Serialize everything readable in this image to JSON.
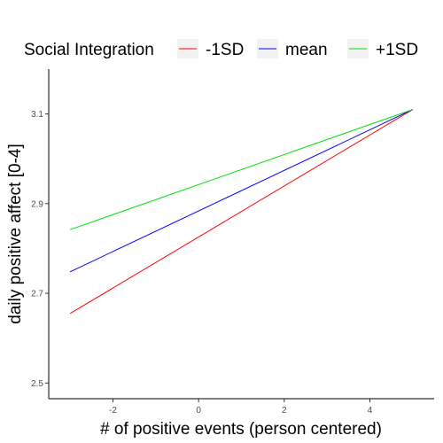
{
  "chart_data": {
    "type": "line",
    "xlabel": "# of positive events (person centered)",
    "ylabel": "daily positive affect [0-4]",
    "xlim": [
      -3.5,
      5.5
    ],
    "ylim": [
      2.465,
      3.2
    ],
    "x_ticks": [
      -2,
      0,
      2,
      4
    ],
    "y_ticks": [
      2.5,
      2.7,
      2.9,
      3.1
    ],
    "x_tick_labels": [
      "-2",
      "0",
      "2",
      "4"
    ],
    "y_tick_labels": [
      "2.5",
      "2.7",
      "2.9",
      "3.1"
    ],
    "grid": false,
    "legend": {
      "title": "Social Integration",
      "placement": "top",
      "entries": [
        "-1SD",
        "mean",
        "+1SD"
      ]
    },
    "series": [
      {
        "name": "-1SD",
        "color": "#ff0000",
        "x": [
          -3,
          5
        ],
        "y": [
          2.655,
          3.11
        ]
      },
      {
        "name": "mean",
        "color": "#0000ff",
        "x": [
          -3,
          5
        ],
        "y": [
          2.748,
          3.11
        ]
      },
      {
        "name": "+1SD",
        "color": "#00e000",
        "x": [
          -3,
          5
        ],
        "y": [
          2.842,
          3.11
        ]
      }
    ]
  }
}
